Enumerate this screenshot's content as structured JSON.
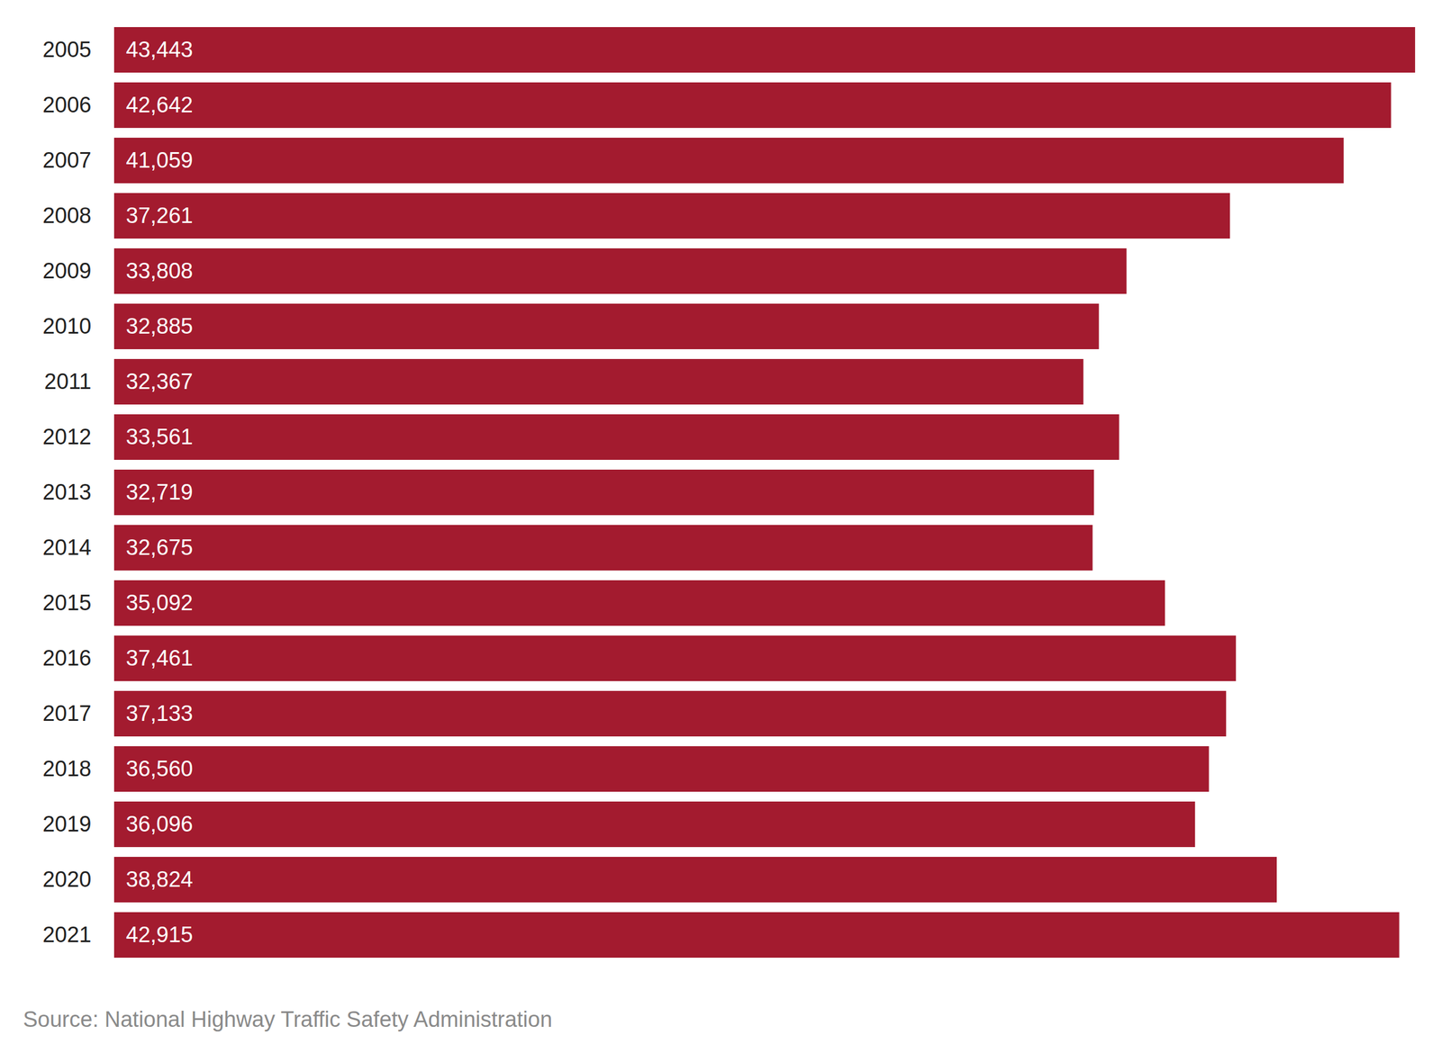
{
  "chart_data": {
    "type": "bar",
    "orientation": "horizontal",
    "caption": "Source: National Highway Traffic Safety Administration",
    "categories": [
      "2005",
      "2006",
      "2007",
      "2008",
      "2009",
      "2010",
      "2011",
      "2012",
      "2013",
      "2014",
      "2015",
      "2016",
      "2017",
      "2018",
      "2019",
      "2020",
      "2021"
    ],
    "values": [
      43443,
      42642,
      41059,
      37261,
      33808,
      32885,
      32367,
      33561,
      32719,
      32675,
      35092,
      37461,
      37133,
      36560,
      36096,
      38824,
      42915
    ],
    "value_labels": [
      "43,443",
      "42,642",
      "41,059",
      "37,261",
      "33,808",
      "32,885",
      "32,367",
      "33,561",
      "32,719",
      "32,675",
      "35,092",
      "37,461",
      "37,133",
      "36,560",
      "36,096",
      "38,824",
      "42,915"
    ],
    "color": "#a31b2f",
    "xlim": [
      0,
      43443
    ],
    "data_labels": true,
    "tick_labels": "y",
    "grid": false
  }
}
